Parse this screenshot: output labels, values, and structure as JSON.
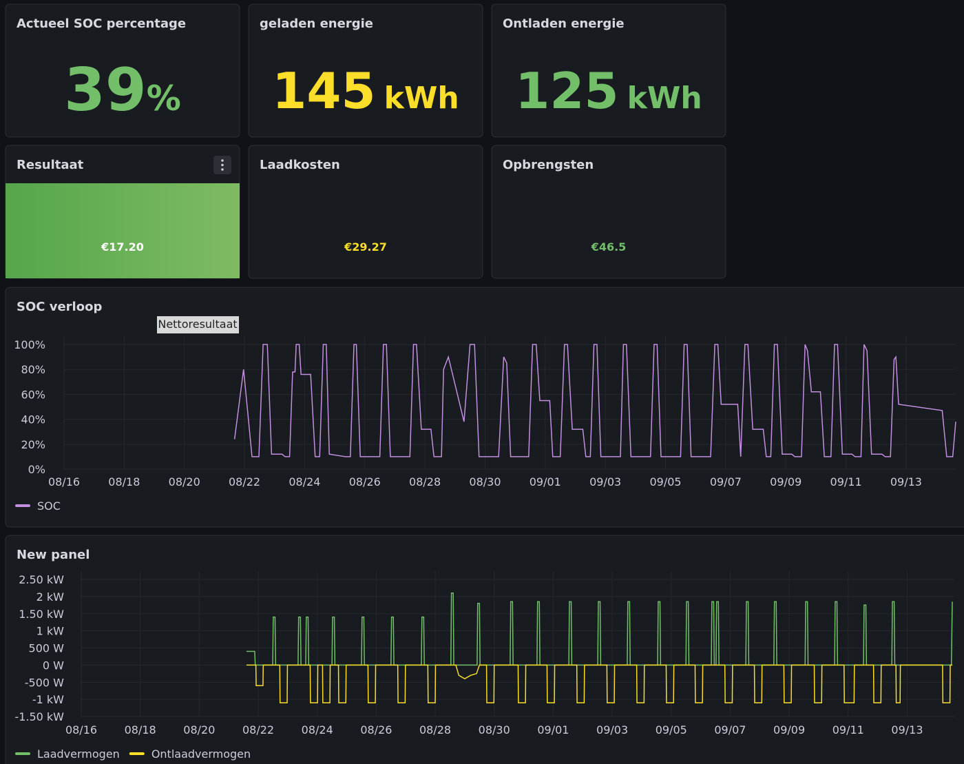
{
  "panels": [
    {
      "title": "Actueel SOC percentage",
      "value": "39",
      "unit": "%"
    },
    {
      "title": "geladen energie",
      "value": "145",
      "unit": "kWh"
    },
    {
      "title": "Ontladen energie",
      "value": "125",
      "unit": "kWh"
    },
    {
      "title": "Resultaat",
      "prefix": "€",
      "value": "17.20"
    },
    {
      "title": "Laadkosten",
      "prefix": "€",
      "value": "29.27"
    },
    {
      "title": "Opbrengsten",
      "prefix": "€",
      "value": "46.5"
    }
  ],
  "tooltip": "Nettoresultaat",
  "chart_data": [
    {
      "type": "line",
      "title": "SOC verloop",
      "grid": true,
      "xlim": [
        0,
        29.65
      ],
      "ylim": [
        0,
        100
      ],
      "xticks": [
        {
          "value": 0,
          "label": "08/16"
        },
        {
          "value": 2,
          "label": "08/18"
        },
        {
          "value": 4,
          "label": "08/20"
        },
        {
          "value": 6,
          "label": "08/22"
        },
        {
          "value": 8,
          "label": "08/24"
        },
        {
          "value": 10,
          "label": "08/26"
        },
        {
          "value": 12,
          "label": "08/28"
        },
        {
          "value": 14,
          "label": "08/30"
        },
        {
          "value": 16,
          "label": "09/01"
        },
        {
          "value": 18,
          "label": "09/03"
        },
        {
          "value": 20,
          "label": "09/05"
        },
        {
          "value": 22,
          "label": "09/07"
        },
        {
          "value": 24,
          "label": "09/09"
        },
        {
          "value": 26,
          "label": "09/11"
        },
        {
          "value": 28,
          "label": "09/13"
        }
      ],
      "yticks": [
        {
          "value": 0,
          "label": "0%"
        },
        {
          "value": 20,
          "label": "20%"
        },
        {
          "value": 40,
          "label": "40%"
        },
        {
          "value": 60,
          "label": "60%"
        },
        {
          "value": 80,
          "label": "80%"
        },
        {
          "value": 100,
          "label": "100%"
        }
      ],
      "series": [
        {
          "name": "SOC",
          "color": "#c38fe0",
          "x": [
            5.67,
            5.97,
            6.25,
            6.48,
            6.62,
            6.76,
            6.9,
            7.25,
            7.35,
            7.5,
            7.6,
            7.68,
            7.72,
            7.82,
            7.88,
            8.2,
            8.35,
            8.5,
            8.62,
            8.72,
            8.82,
            9.35,
            9.52,
            9.64,
            9.72,
            9.85,
            10.5,
            10.62,
            10.72,
            10.85,
            11.5,
            11.62,
            11.72,
            11.88,
            12.2,
            12.3,
            12.55,
            12.62,
            12.7,
            12.78,
            13.3,
            13.5,
            13.65,
            13.8,
            14.45,
            14.62,
            14.72,
            14.85,
            15.45,
            15.58,
            15.7,
            15.82,
            16.15,
            16.25,
            16.5,
            16.64,
            16.74,
            16.9,
            17.25,
            17.35,
            17.5,
            17.62,
            17.72,
            17.85,
            18.5,
            18.6,
            18.7,
            18.85,
            19.5,
            19.62,
            19.72,
            19.85,
            20.5,
            20.62,
            20.72,
            20.85,
            21.5,
            21.64,
            21.74,
            21.85,
            22.4,
            22.5,
            22.64,
            22.74,
            22.9,
            23.25,
            23.35,
            23.5,
            23.62,
            23.72,
            23.88,
            24.2,
            24.3,
            24.52,
            24.64,
            24.72,
            24.85,
            25.15,
            25.28,
            25.5,
            25.62,
            25.72,
            25.88,
            26.2,
            26.3,
            26.5,
            26.6,
            26.7,
            26.85,
            27.2,
            27.3,
            27.48,
            27.6,
            27.66,
            27.75,
            29.2,
            29.35,
            29.55,
            29.65
          ],
          "values": [
            24,
            80,
            10,
            10,
            100,
            100,
            12,
            12,
            10,
            10,
            78,
            78,
            100,
            100,
            76,
            76,
            10,
            10,
            100,
            100,
            12,
            10,
            10,
            100,
            100,
            10,
            10,
            100,
            100,
            10,
            10,
            100,
            100,
            32,
            32,
            10,
            10,
            80,
            85,
            90,
            38,
            100,
            100,
            10,
            10,
            90,
            85,
            10,
            10,
            100,
            100,
            55,
            55,
            10,
            10,
            100,
            100,
            32,
            32,
            10,
            10,
            100,
            100,
            10,
            10,
            100,
            100,
            10,
            10,
            100,
            100,
            10,
            10,
            100,
            100,
            10,
            10,
            100,
            100,
            52,
            52,
            10,
            100,
            100,
            32,
            32,
            10,
            10,
            100,
            100,
            12,
            12,
            10,
            10,
            100,
            95,
            62,
            62,
            10,
            10,
            100,
            100,
            12,
            12,
            10,
            10,
            100,
            95,
            12,
            12,
            10,
            10,
            88,
            90,
            52,
            47,
            10,
            10,
            38
          ]
        }
      ]
    },
    {
      "type": "line",
      "title": "New panel",
      "grid": true,
      "xlim": [
        0,
        29.6
      ],
      "ylim": [
        -1500,
        2500
      ],
      "xticks": [
        {
          "value": 0,
          "label": "08/16"
        },
        {
          "value": 2,
          "label": "08/18"
        },
        {
          "value": 4,
          "label": "08/20"
        },
        {
          "value": 6,
          "label": "08/22"
        },
        {
          "value": 8,
          "label": "08/24"
        },
        {
          "value": 10,
          "label": "08/26"
        },
        {
          "value": 12,
          "label": "08/28"
        },
        {
          "value": 14,
          "label": "08/30"
        },
        {
          "value": 16,
          "label": "09/01"
        },
        {
          "value": 18,
          "label": "09/03"
        },
        {
          "value": 20,
          "label": "09/05"
        },
        {
          "value": 22,
          "label": "09/07"
        },
        {
          "value": 24,
          "label": "09/09"
        },
        {
          "value": 26,
          "label": "09/11"
        },
        {
          "value": 28,
          "label": "09/13"
        }
      ],
      "yticks": [
        {
          "value": -1500,
          "label": "-1.50 kW"
        },
        {
          "value": -1000,
          "label": "-1 kW"
        },
        {
          "value": -500,
          "label": "-500 W"
        },
        {
          "value": 0,
          "label": "0 W"
        },
        {
          "value": 500,
          "label": "500 W"
        },
        {
          "value": 1000,
          "label": "1 kW"
        },
        {
          "value": 1500,
          "label": "1.50 kW"
        },
        {
          "value": 2000,
          "label": "2 kW"
        },
        {
          "value": 2500,
          "label": "2.50 kW"
        }
      ],
      "series": [
        {
          "name": "Laadvermogen",
          "color": "#73bf69",
          "x": [
            5.6,
            5.88,
            5.9,
            6.49,
            6.51,
            6.57,
            6.59,
            7.35,
            7.37,
            7.43,
            7.45,
            7.61,
            7.63,
            7.69,
            7.71,
            8.5,
            8.52,
            8.58,
            8.6,
            9.5,
            9.52,
            9.58,
            9.6,
            10.5,
            10.52,
            10.58,
            10.6,
            11.53,
            11.55,
            11.61,
            11.63,
            12.53,
            12.55,
            12.61,
            12.63,
            13.42,
            13.44,
            13.5,
            13.52,
            14.54,
            14.56,
            14.62,
            14.64,
            15.45,
            15.47,
            15.53,
            15.55,
            16.53,
            16.55,
            16.61,
            16.63,
            17.51,
            17.53,
            17.59,
            17.61,
            18.51,
            18.53,
            18.59,
            18.61,
            19.54,
            19.56,
            19.62,
            19.64,
            20.5,
            20.52,
            20.58,
            20.6,
            21.36,
            21.38,
            21.44,
            21.46,
            21.52,
            21.54,
            21.6,
            21.62,
            22.53,
            22.55,
            22.61,
            22.63,
            23.48,
            23.5,
            23.56,
            23.58,
            24.54,
            24.56,
            24.62,
            24.64,
            25.54,
            25.56,
            25.62,
            25.64,
            26.52,
            26.54,
            26.6,
            26.62,
            27.48,
            27.5,
            27.56,
            27.58,
            29.5,
            29.53
          ],
          "values": [
            400,
            400,
            0,
            0,
            1400,
            1400,
            0,
            0,
            1400,
            1400,
            0,
            0,
            1400,
            1400,
            0,
            0,
            1400,
            1400,
            0,
            0,
            1400,
            1400,
            0,
            0,
            1400,
            1400,
            0,
            0,
            1400,
            1400,
            0,
            0,
            2100,
            2100,
            0,
            0,
            1800,
            1800,
            0,
            0,
            1850,
            1850,
            0,
            0,
            1850,
            1850,
            0,
            0,
            1850,
            1850,
            0,
            0,
            1850,
            1850,
            0,
            0,
            1850,
            1850,
            0,
            0,
            1850,
            1850,
            0,
            0,
            1850,
            1850,
            0,
            0,
            1850,
            1850,
            0,
            0,
            1850,
            1850,
            0,
            0,
            1850,
            1850,
            0,
            0,
            1850,
            1850,
            0,
            0,
            1850,
            1850,
            0,
            0,
            1850,
            1850,
            0,
            0,
            1750,
            1750,
            0,
            0,
            1850,
            1850,
            0,
            0,
            1850
          ]
        },
        {
          "name": "Ontlaadvermogen",
          "color": "#fade2a",
          "x": [
            5.6,
            5.92,
            5.93,
            6.16,
            6.17,
            6.73,
            6.74,
            6.98,
            6.99,
            7.76,
            7.77,
            8.01,
            8.02,
            8.18,
            8.19,
            8.43,
            8.44,
            8.72,
            8.73,
            8.97,
            8.98,
            9.72,
            9.73,
            9.97,
            9.98,
            10.73,
            10.74,
            10.98,
            10.99,
            11.75,
            11.76,
            12.0,
            12.01,
            12.7,
            12.8,
            13.0,
            13.2,
            13.4,
            13.5,
            13.74,
            13.75,
            13.99,
            14.0,
            14.81,
            14.82,
            15.06,
            15.07,
            15.79,
            15.8,
            16.04,
            16.05,
            16.8,
            16.81,
            17.05,
            17.06,
            17.82,
            17.83,
            18.07,
            18.08,
            18.83,
            18.84,
            19.08,
            19.09,
            19.83,
            19.84,
            20.08,
            20.09,
            20.81,
            20.82,
            21.06,
            21.07,
            21.82,
            21.83,
            22.07,
            22.08,
            22.82,
            22.83,
            23.07,
            23.08,
            23.82,
            23.83,
            24.07,
            24.08,
            24.85,
            24.86,
            25.1,
            25.11,
            25.86,
            25.87,
            26.2,
            26.21,
            26.86,
            26.87,
            27.11,
            27.12,
            27.62,
            27.63,
            27.76,
            27.77,
            29.2,
            29.21,
            29.45,
            29.46,
            29.53
          ],
          "values": [
            0,
            0,
            -600,
            -600,
            0,
            0,
            -1100,
            -1100,
            0,
            0,
            -1100,
            -1100,
            0,
            0,
            -1100,
            -1100,
            0,
            0,
            -1100,
            -1100,
            0,
            0,
            -1100,
            -1100,
            0,
            0,
            -1100,
            -1100,
            0,
            0,
            -1100,
            -1100,
            0,
            0,
            -300,
            -400,
            -300,
            -250,
            0,
            0,
            -1100,
            -1100,
            0,
            0,
            -1100,
            -1100,
            0,
            0,
            -1100,
            -1100,
            0,
            0,
            -1100,
            -1100,
            0,
            0,
            -1100,
            -1100,
            0,
            0,
            -1100,
            -1100,
            0,
            0,
            -1100,
            -1100,
            0,
            0,
            -1100,
            -1100,
            0,
            0,
            -1100,
            -1100,
            0,
            0,
            -1100,
            -1100,
            0,
            0,
            -1100,
            -1100,
            0,
            0,
            -1100,
            -1100,
            0,
            0,
            -1100,
            -1100,
            0,
            0,
            -1100,
            -1100,
            0,
            0,
            -1100,
            -1100,
            0,
            0,
            -1100,
            -1100,
            0,
            0
          ]
        }
      ]
    }
  ]
}
